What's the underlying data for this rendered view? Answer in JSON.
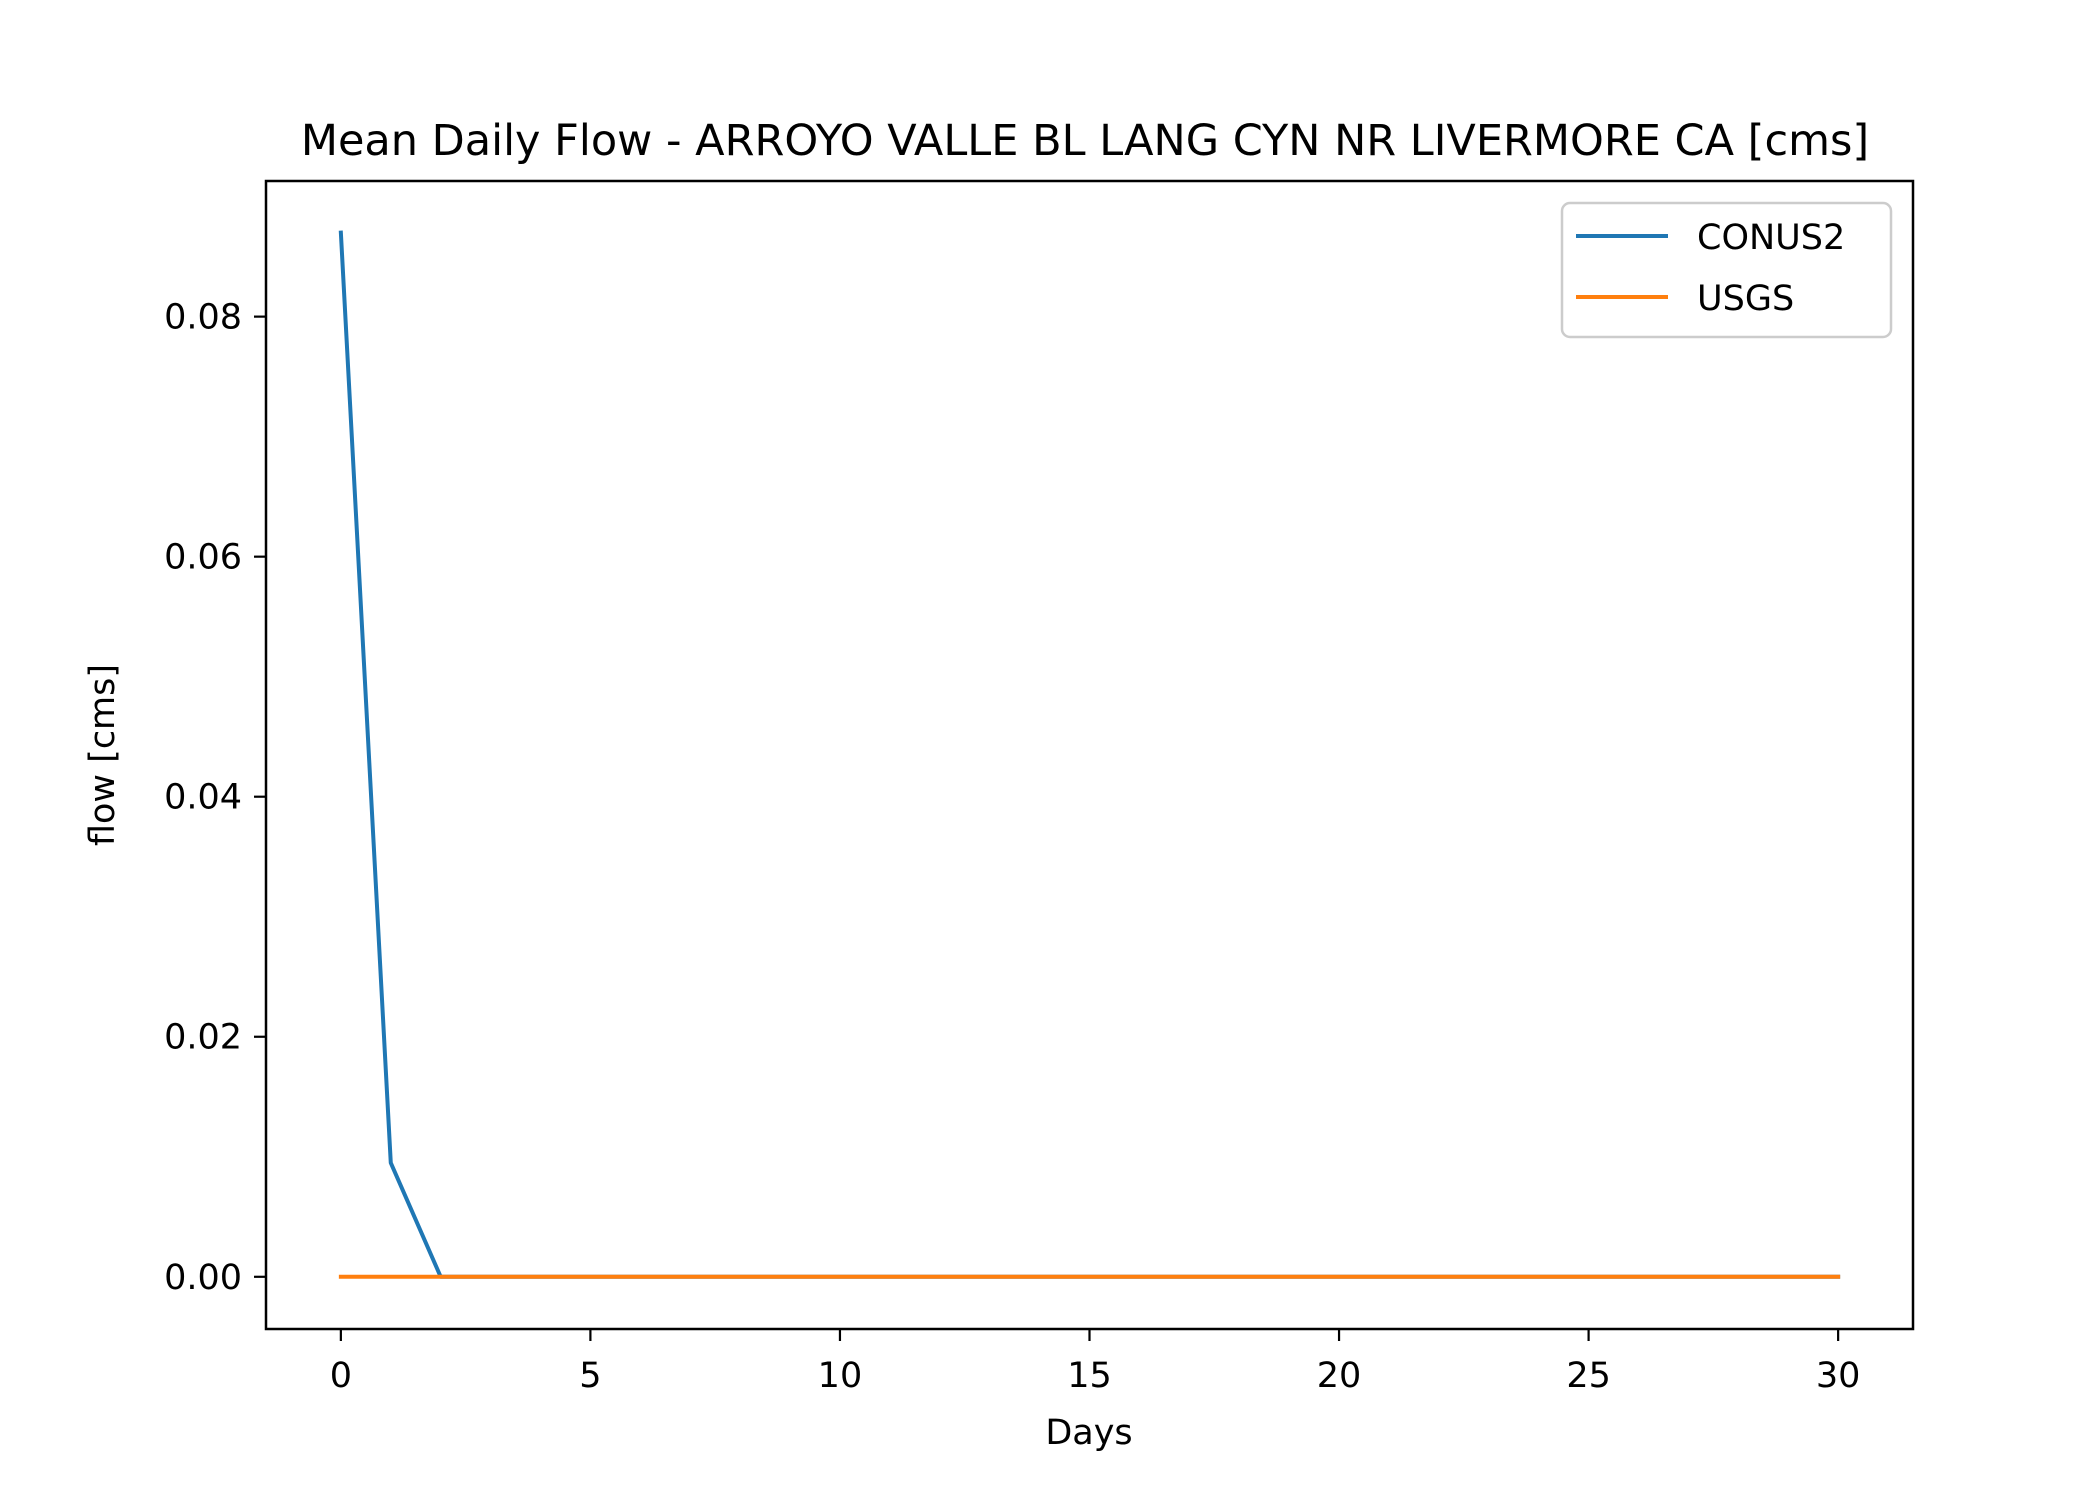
{
  "chart_data": {
    "type": "line",
    "title": "Mean Daily Flow - ARROYO VALLE BL LANG CYN NR LIVERMORE CA [cms]",
    "xlabel": "Days",
    "ylabel": "flow [cms]",
    "xlim": [
      -1.5,
      31.5
    ],
    "ylim": [
      -0.00435,
      0.0913
    ],
    "xticks": [
      0,
      5,
      10,
      15,
      20,
      25,
      30
    ],
    "xtick_labels": [
      "0",
      "5",
      "10",
      "15",
      "20",
      "25",
      "30"
    ],
    "yticks": [
      0.0,
      0.02,
      0.04,
      0.06,
      0.08
    ],
    "ytick_labels": [
      "0.00",
      "0.02",
      "0.04",
      "0.06",
      "0.08"
    ],
    "grid": false,
    "legend_position": "top-right",
    "series": [
      {
        "name": "CONUS2",
        "color": "#1f77b4",
        "x": [
          0,
          1,
          2,
          3,
          4,
          5,
          6,
          7,
          8,
          9,
          10,
          11,
          12,
          13,
          14,
          15,
          16,
          17,
          18,
          19,
          20,
          21,
          22,
          23,
          24,
          25,
          26,
          27,
          28,
          29,
          30
        ],
        "y": [
          0.087,
          0.0095,
          0.0,
          0,
          0,
          0,
          0,
          0,
          0,
          0,
          0,
          0,
          0,
          0,
          0,
          0,
          0,
          0,
          0,
          0,
          0,
          0,
          0,
          0,
          0,
          0,
          0,
          0,
          0,
          0,
          0
        ]
      },
      {
        "name": "USGS",
        "color": "#ff7f0e",
        "x": [
          0,
          1,
          2,
          3,
          4,
          5,
          6,
          7,
          8,
          9,
          10,
          11,
          12,
          13,
          14,
          15,
          16,
          17,
          18,
          19,
          20,
          21,
          22,
          23,
          24,
          25,
          26,
          27,
          28,
          29,
          30
        ],
        "y": [
          0,
          0,
          0,
          0,
          0,
          0,
          0,
          0,
          0,
          0,
          0,
          0,
          0,
          0,
          0,
          0,
          0,
          0,
          0,
          0,
          0,
          0,
          0,
          0,
          0,
          0,
          0,
          0,
          0,
          0,
          0
        ]
      }
    ]
  }
}
